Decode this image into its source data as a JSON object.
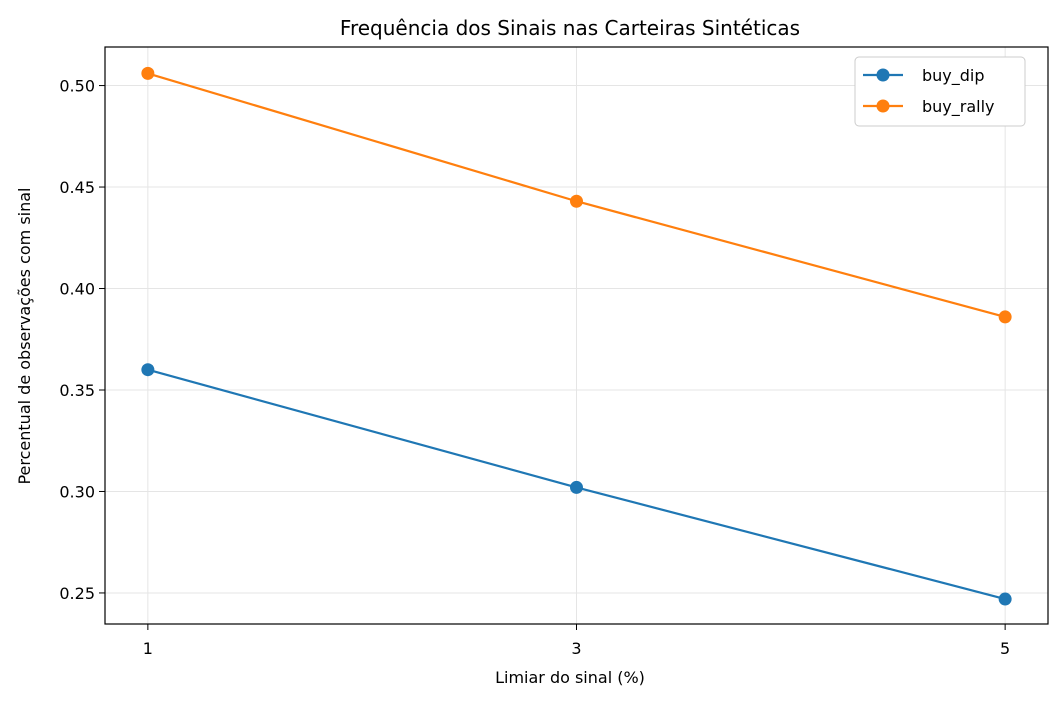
{
  "chart_data": {
    "type": "line",
    "title": "Frequência dos Sinais nas Carteiras Sintéticas",
    "xlabel": "Limiar do sinal (%)",
    "ylabel": "Percentual de observações com sinal",
    "x": [
      1,
      3,
      5
    ],
    "x_ticks": [
      "1",
      "3",
      "5"
    ],
    "y_ticks": [
      "0.25",
      "0.30",
      "0.35",
      "0.40",
      "0.45",
      "0.50"
    ],
    "xlim": [
      0.8,
      5.2
    ],
    "ylim": [
      0.2347,
      0.519
    ],
    "grid": true,
    "legend_position": "top-right",
    "series": [
      {
        "name": "buy_dip",
        "values": [
          0.36,
          0.302,
          0.247
        ],
        "color": "#1f77b4"
      },
      {
        "name": "buy_rally",
        "values": [
          0.506,
          0.443,
          0.386
        ],
        "color": "#ff7f0e"
      }
    ]
  }
}
